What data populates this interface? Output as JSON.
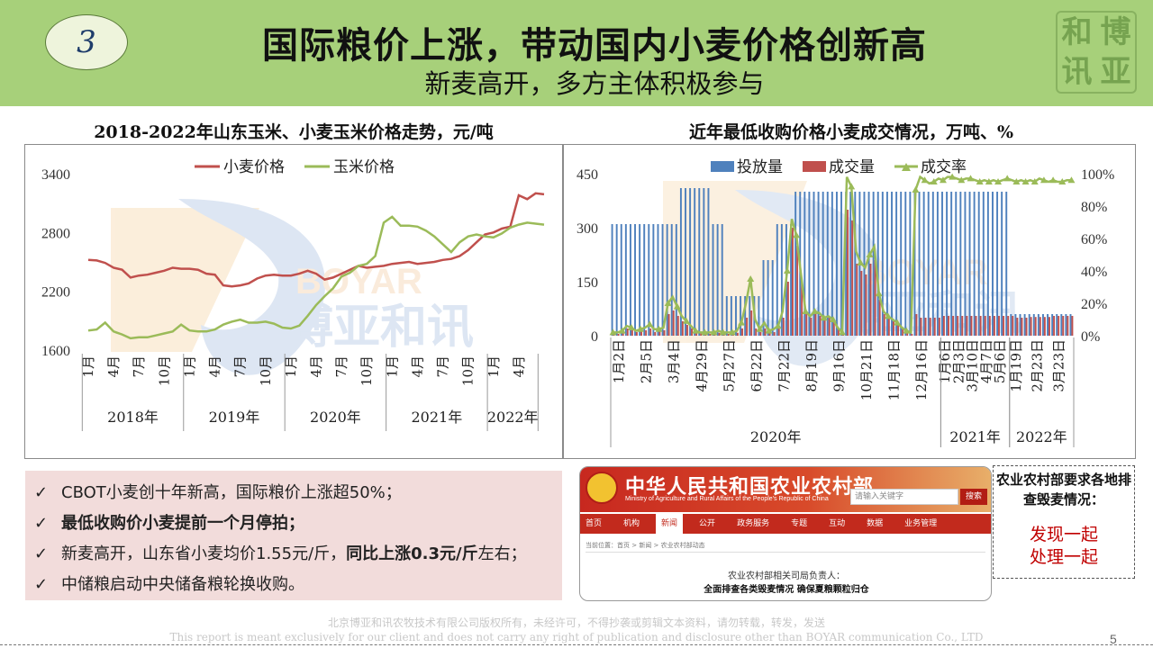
{
  "header": {
    "badge": "3",
    "title": "国际粮价上涨，带动国内小麦价格创新高",
    "subtitle": "新麦高开，多方主体积极参与",
    "logo_text": [
      "和",
      "博",
      "讯",
      "亚"
    ]
  },
  "left_chart_title": "2018-2022年山东玉米、小麦玉米价格走势，元/吨",
  "right_chart_title": "近年最低收购价格小麦成交情况，万吨、%",
  "watermark": {
    "logo_text": "BOYAR",
    "cn_text": "博亚和讯"
  },
  "chart_data": [
    {
      "type": "line",
      "title": "2018-2022年山东玉米、小麦玉米价格走势，元/吨",
      "ylim": [
        1600,
        3400
      ],
      "yticks": [
        1600,
        2200,
        2800,
        3400
      ],
      "grid": false,
      "legend": "top",
      "x_month_labels": [
        "1月",
        "4月",
        "7月",
        "10月",
        "1月",
        "4月",
        "7月",
        "10月",
        "1月",
        "4月",
        "7月",
        "10月",
        "1月",
        "4月",
        "7月",
        "10月",
        "1月",
        "4月"
      ],
      "x_year_groups": [
        {
          "label": "2018年",
          "months": 12
        },
        {
          "label": "2019年",
          "months": 12
        },
        {
          "label": "2020年",
          "months": 12
        },
        {
          "label": "2021年",
          "months": 12
        },
        {
          "label": "2022年",
          "months": 6
        }
      ],
      "series": [
        {
          "name": "小麦价格",
          "color": "#c0504d",
          "values": [
            2520,
            2515,
            2490,
            2440,
            2420,
            2340,
            2360,
            2370,
            2390,
            2410,
            2440,
            2430,
            2430,
            2420,
            2380,
            2370,
            2260,
            2250,
            2260,
            2280,
            2330,
            2360,
            2370,
            2360,
            2360,
            2380,
            2410,
            2380,
            2320,
            2340,
            2380,
            2420,
            2460,
            2440,
            2450,
            2460,
            2480,
            2490,
            2500,
            2480,
            2490,
            2500,
            2520,
            2530,
            2560,
            2620,
            2700,
            2780,
            2800,
            2840,
            2860,
            3180,
            3140,
            3200,
            3190
          ]
        },
        {
          "name": "玉米价格",
          "color": "#9bbb59",
          "values": [
            1800,
            1810,
            1880,
            1790,
            1760,
            1720,
            1730,
            1730,
            1750,
            1770,
            1790,
            1860,
            1800,
            1790,
            1790,
            1810,
            1860,
            1890,
            1910,
            1880,
            1880,
            1890,
            1870,
            1830,
            1820,
            1850,
            1950,
            2060,
            2150,
            2230,
            2350,
            2390,
            2460,
            2480,
            2560,
            2900,
            2960,
            2870,
            2870,
            2860,
            2820,
            2760,
            2680,
            2600,
            2700,
            2760,
            2780,
            2760,
            2750,
            2790,
            2850,
            2880,
            2900,
            2890,
            2880
          ]
        }
      ]
    },
    {
      "type": "bar",
      "title": "近年最低收购价格小麦成交情况，万吨、%",
      "y_left": [
        0,
        450
      ],
      "y_left_ticks": [
        0,
        150,
        300,
        450
      ],
      "y_right": [
        0,
        100
      ],
      "y_right_ticks": [
        "0%",
        "20%",
        "40%",
        "60%",
        "80%",
        "100%"
      ],
      "legend": "top",
      "x_labels": [
        "1月2日",
        "2月5日",
        "3月4日",
        "4月29日",
        "5月27日",
        "6月22日",
        "7月22日",
        "8月19日",
        "9月16日",
        "10月21日",
        "11月18日",
        "12月16日",
        "1月6日",
        "2月3日",
        "3月10日",
        "4月7日",
        "5月6日",
        "1月19日",
        "2月23日",
        "3月23日"
      ],
      "x_year_groups": [
        {
          "label": "2020年",
          "count": 12
        },
        {
          "label": "2021年",
          "count": 5
        },
        {
          "label": "2022年",
          "count": 3
        }
      ],
      "series": [
        {
          "name": "投放量",
          "type": "bar",
          "color": "#4f81bd",
          "values": [
            310,
            310,
            310,
            310,
            310,
            310,
            310,
            310,
            310,
            310,
            310,
            310,
            310,
            310,
            310,
            410,
            410,
            410,
            410,
            410,
            410,
            410,
            310,
            310,
            310,
            110,
            110,
            110,
            110,
            110,
            110,
            110,
            110,
            210,
            210,
            210,
            310,
            310,
            310,
            310,
            400,
            400,
            400,
            400,
            400,
            400,
            400,
            400,
            400,
            400,
            400,
            400,
            400,
            400,
            400,
            400,
            400,
            400,
            400,
            400,
            400,
            400,
            400,
            400,
            400,
            400,
            400,
            400,
            400,
            400,
            400,
            400,
            400,
            400,
            400,
            400,
            400,
            400,
            400,
            400,
            400,
            400,
            400,
            400,
            400,
            400,
            400,
            60,
            60,
            60,
            60,
            60,
            60,
            60,
            60,
            60,
            60,
            60,
            60,
            60,
            60
          ]
        },
        {
          "name": "成交量",
          "type": "bar",
          "color": "#c0504d",
          "values": [
            5,
            5,
            10,
            20,
            18,
            10,
            12,
            15,
            20,
            10,
            12,
            15,
            60,
            70,
            55,
            40,
            30,
            20,
            10,
            6,
            5,
            5,
            5,
            8,
            5,
            5,
            5,
            8,
            20,
            50,
            70,
            20,
            10,
            20,
            10,
            10,
            20,
            50,
            150,
            300,
            250,
            150,
            60,
            50,
            60,
            55,
            45,
            50,
            40,
            20,
            10,
            350,
            320,
            200,
            180,
            170,
            200,
            210,
            100,
            60,
            50,
            40,
            30,
            20,
            10,
            5,
            60,
            50,
            50,
            50,
            50,
            50,
            55,
            55,
            55,
            55,
            55,
            55,
            55,
            55,
            55,
            55,
            55,
            55,
            55,
            55,
            55,
            55,
            50,
            50,
            50,
            52,
            52,
            52,
            52,
            52,
            55,
            55,
            55,
            55,
            55
          ]
        },
        {
          "name": "成交率",
          "type": "line",
          "color": "#9bbb59",
          "values": [
            2,
            2,
            3,
            6,
            5,
            3,
            4,
            5,
            7,
            4,
            4,
            5,
            20,
            24,
            18,
            12,
            9,
            6,
            3,
            2,
            2,
            2,
            2,
            3,
            2,
            2,
            2,
            3,
            8,
            20,
            35,
            10,
            4,
            8,
            3,
            4,
            6,
            15,
            40,
            72,
            62,
            38,
            15,
            12,
            15,
            14,
            11,
            12,
            10,
            5,
            2,
            98,
            92,
            52,
            45,
            42,
            50,
            55,
            26,
            15,
            12,
            10,
            8,
            5,
            3,
            2,
            90,
            98,
            96,
            94,
            95,
            97,
            96,
            98,
            98,
            97,
            96,
            97,
            97,
            96,
            95,
            96,
            95,
            96,
            95,
            96,
            97,
            96,
            95,
            96,
            95,
            96,
            95,
            97,
            96,
            95,
            96,
            95,
            95,
            96,
            96
          ]
        }
      ]
    }
  ],
  "bullets": [
    {
      "plain": "CBOT小麦创十年新高，国际粮价上涨超50%；",
      "bold": "",
      "tail": ""
    },
    {
      "plain": "",
      "bold": "最低收购价小麦提前一个月停拍；",
      "tail": ""
    },
    {
      "plain": "新麦高开，山东省小麦均价1.55元/斤，",
      "bold": "同比上涨0.3元/斤",
      "tail": "左右；"
    },
    {
      "plain": "中储粮启动中央储备粮轮换收购。",
      "bold": "",
      "tail": ""
    }
  ],
  "check_symbol": "✓",
  "website": {
    "name": "中华人民共和国农业农村部",
    "name_en": "Ministry of Agriculture and Rural Affairs of the People's Republic of China",
    "search_placeholder": "请输入关键字",
    "search_button": "搜索",
    "nav": [
      "首页",
      "机构",
      "新闻",
      "公开",
      "政务服务",
      "专题",
      "互动",
      "数据",
      "业务管理"
    ],
    "nav_active": 2,
    "breadcrumb": "当前位置：首页 > 新闻 > 农业农村部动态",
    "headline1": "农业农村部相关司局负责人：",
    "headline2": "全面排查各类毁麦情况 确保夏粮颗粒归仓"
  },
  "notice": {
    "top": "农业农村部要求各地排查毁麦情况：",
    "red_line1": "发现一起",
    "red_line2": "处理一起"
  },
  "footer": {
    "cn": "北京博亚和讯农牧技术有限公司版权所有，未经许可，不得抄袭或剪辑文本资料，请勿转载，转发，发送",
    "en": "This report is meant exclusively for our client and does not carry any right of publication and disclosure other than BOYAR communication Co., LTD",
    "page": "5"
  }
}
